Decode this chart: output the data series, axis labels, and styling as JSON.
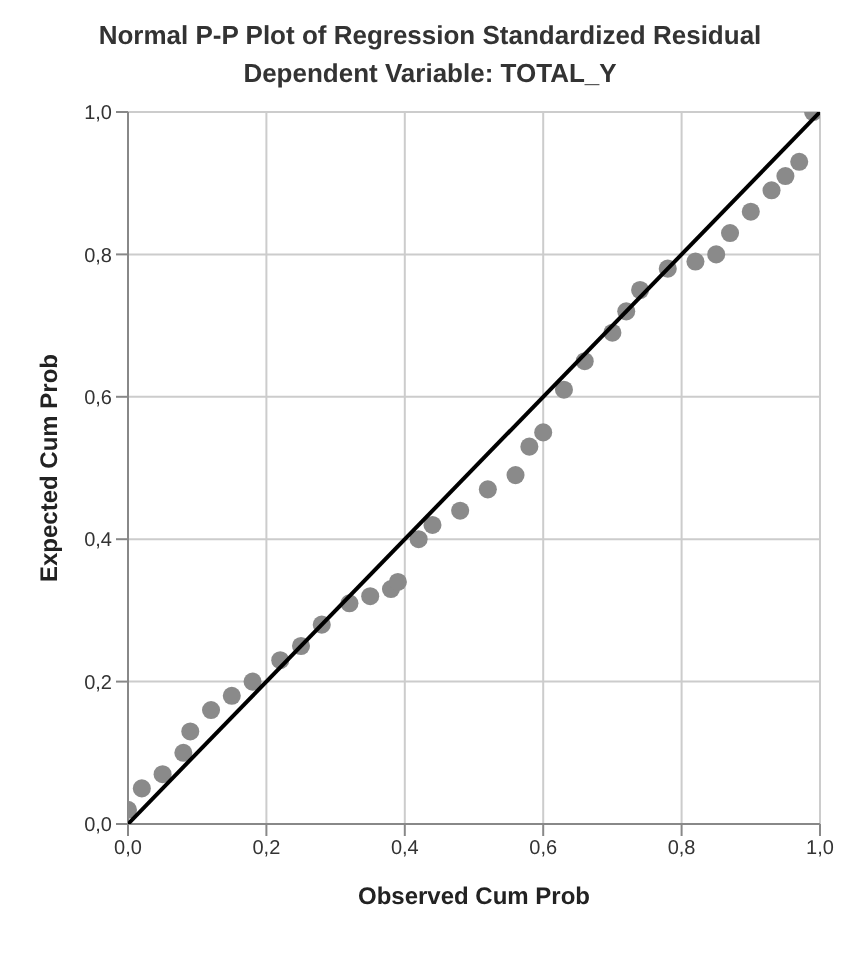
{
  "chart_data": {
    "type": "scatter",
    "title": "Normal P-P Plot of Regression Standardized Residual",
    "subtitle": "Dependent Variable: TOTAL_Y",
    "xlabel": "Observed Cum Prob",
    "ylabel": "Expected Cum Prob",
    "xlim": [
      0,
      1
    ],
    "ylim": [
      0,
      1
    ],
    "xticks": [
      {
        "value": 0,
        "label": "0,0"
      },
      {
        "value": 0.2,
        "label": "0,2"
      },
      {
        "value": 0.4,
        "label": "0,4"
      },
      {
        "value": 0.6,
        "label": "0,6"
      },
      {
        "value": 0.8,
        "label": "0,8"
      },
      {
        "value": 1,
        "label": "1,0"
      }
    ],
    "yticks": [
      {
        "value": 0,
        "label": "0,0"
      },
      {
        "value": 0.2,
        "label": "0,2"
      },
      {
        "value": 0.4,
        "label": "0,4"
      },
      {
        "value": 0.6,
        "label": "0,6"
      },
      {
        "value": 0.8,
        "label": "0,8"
      },
      {
        "value": 1,
        "label": "1,0"
      }
    ],
    "grid": true,
    "series": [
      {
        "marker": "circle",
        "color": "#8a8a8a",
        "x": [
          0.0,
          0.02,
          0.05,
          0.08,
          0.09,
          0.12,
          0.15,
          0.18,
          0.22,
          0.25,
          0.28,
          0.32,
          0.35,
          0.38,
          0.39,
          0.42,
          0.44,
          0.48,
          0.52,
          0.56,
          0.58,
          0.6,
          0.63,
          0.66,
          0.7,
          0.72,
          0.74,
          0.78,
          0.82,
          0.85,
          0.87,
          0.9,
          0.93,
          0.95,
          0.97,
          0.99
        ],
        "values": [
          0.02,
          0.05,
          0.07,
          0.1,
          0.13,
          0.16,
          0.18,
          0.2,
          0.23,
          0.25,
          0.28,
          0.31,
          0.32,
          0.33,
          0.34,
          0.4,
          0.42,
          0.44,
          0.47,
          0.49,
          0.53,
          0.55,
          0.61,
          0.65,
          0.69,
          0.72,
          0.75,
          0.78,
          0.79,
          0.8,
          0.83,
          0.86,
          0.89,
          0.91,
          0.93,
          1.0
        ]
      },
      {
        "type": "line",
        "marker": "none",
        "color": "#000000",
        "line_style": "solid",
        "x": [
          0,
          1
        ],
        "values": [
          0,
          1
        ]
      }
    ]
  }
}
